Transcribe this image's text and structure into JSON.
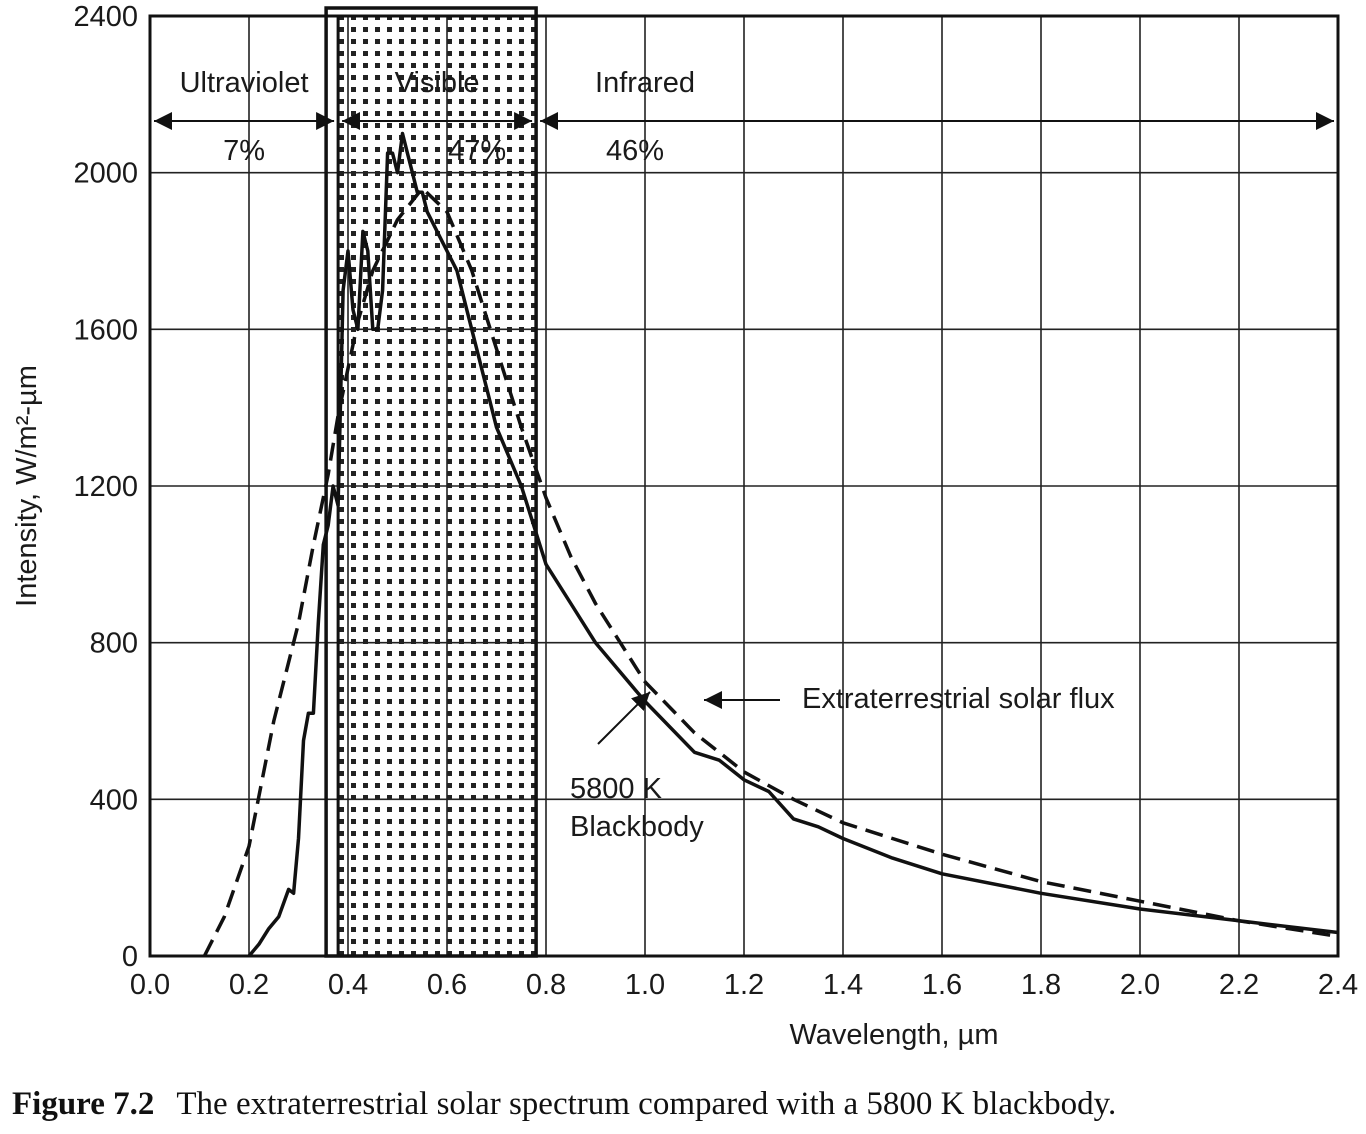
{
  "chart_data": {
    "type": "line",
    "title": "",
    "xlabel": "Wavelength, µm",
    "ylabel": "Intensity, W/m²-µm",
    "xlim": [
      0.0,
      2.4
    ],
    "ylim": [
      0,
      2400
    ],
    "grid": true,
    "x_ticks": [
      "0.0",
      "0.2",
      "0.4",
      "0.6",
      "0.8",
      "1.0",
      "1.2",
      "1.4",
      "1.6",
      "1.8",
      "2.0",
      "2.2",
      "2.4"
    ],
    "y_ticks": [
      "0",
      "400",
      "800",
      "1200",
      "1600",
      "2000",
      "2400"
    ],
    "regions": [
      {
        "name": "Ultraviolet",
        "percent": "7%",
        "x_start": 0.0,
        "x_end": 0.38,
        "shaded": false
      },
      {
        "name": "Visible",
        "percent": "47%",
        "x_start": 0.38,
        "x_end": 0.78,
        "shaded": true
      },
      {
        "name": "Infrared",
        "percent": "46%",
        "x_start": 0.78,
        "x_end": 2.4,
        "shaded": false
      }
    ],
    "series": [
      {
        "name": "Extraterrestrial solar flux",
        "style": "solid",
        "x": [
          0.2,
          0.22,
          0.24,
          0.26,
          0.28,
          0.29,
          0.3,
          0.31,
          0.32,
          0.33,
          0.34,
          0.35,
          0.36,
          0.37,
          0.38,
          0.39,
          0.4,
          0.41,
          0.42,
          0.43,
          0.44,
          0.45,
          0.46,
          0.47,
          0.48,
          0.49,
          0.5,
          0.51,
          0.52,
          0.53,
          0.54,
          0.55,
          0.56,
          0.58,
          0.6,
          0.62,
          0.64,
          0.66,
          0.68,
          0.7,
          0.75,
          0.8,
          0.85,
          0.9,
          1.0,
          1.1,
          1.15,
          1.2,
          1.25,
          1.3,
          1.35,
          1.4,
          1.5,
          1.6,
          1.8,
          2.0,
          2.2,
          2.4
        ],
        "y": [
          0,
          30,
          70,
          100,
          170,
          160,
          300,
          550,
          620,
          620,
          850,
          1050,
          1100,
          1200,
          1150,
          1700,
          1800,
          1650,
          1600,
          1850,
          1800,
          1600,
          1600,
          1700,
          2050,
          2050,
          2000,
          2100,
          2050,
          2000,
          1950,
          1950,
          1900,
          1850,
          1800,
          1750,
          1650,
          1550,
          1450,
          1350,
          1200,
          1000,
          900,
          800,
          650,
          520,
          500,
          450,
          420,
          350,
          330,
          300,
          250,
          210,
          160,
          120,
          90,
          60
        ]
      },
      {
        "name": "5800 K Blackbody",
        "style": "dashed",
        "x": [
          0.11,
          0.15,
          0.2,
          0.25,
          0.3,
          0.33,
          0.36,
          0.38,
          0.4,
          0.42,
          0.45,
          0.5,
          0.55,
          0.6,
          0.65,
          0.7,
          0.75,
          0.8,
          0.85,
          0.9,
          0.95,
          1.0,
          1.1,
          1.2,
          1.3,
          1.4,
          1.6,
          1.8,
          2.0,
          2.2,
          2.4
        ],
        "y": [
          0,
          100,
          280,
          600,
          850,
          1050,
          1230,
          1380,
          1500,
          1620,
          1750,
          1880,
          1960,
          1900,
          1750,
          1550,
          1350,
          1170,
          1020,
          900,
          800,
          700,
          570,
          470,
          400,
          340,
          260,
          190,
          140,
          90,
          50
        ]
      }
    ],
    "annotations": {
      "flux_label": "Extraterrestrial solar flux",
      "blackbody_label_line1": "5800 K",
      "blackbody_label_line2": "Blackbody"
    }
  },
  "caption": {
    "figure_number": "Figure 7.2",
    "text": "The extraterrestrial solar spectrum compared with a 5800 K blackbody."
  }
}
